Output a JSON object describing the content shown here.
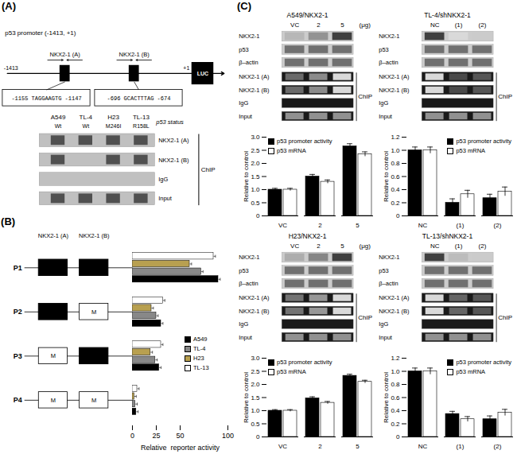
{
  "chart_data": [
    {
      "type": "diagram",
      "title": "(A)",
      "subtitle": "p53 promoter (-1413, +1)",
      "annotations": {
        "start": "-1413",
        "end": "+1",
        "sites": [
          "NKX2-1 (A)",
          "NKX2-1 (B)"
        ],
        "reporter": "LUC",
        "sequences": [
          "-1155 TAGGAAGTG -1147",
          "-696 GCACTTTAG -674"
        ],
        "cell_lines": [
          "A549",
          "TL-4",
          "H23",
          "TL-13"
        ],
        "p53_status": [
          "Wt",
          "Wt",
          "M246I",
          "R158L"
        ],
        "status_label": "p53 status",
        "chip_label": "ChIP"
      },
      "chip_rows": [
        {
          "name": "NKX2-1 (A)",
          "bands": [
            true,
            true,
            true,
            true
          ]
        },
        {
          "name": "NKX2-1 (B)",
          "bands": [
            true,
            false,
            true,
            true
          ]
        },
        {
          "name": "IgG",
          "bands": [
            false,
            false,
            false,
            false
          ]
        },
        {
          "name": "Input",
          "bands": [
            true,
            true,
            true,
            true
          ]
        }
      ]
    },
    {
      "type": "bar",
      "orientation": "horizontal",
      "title": "(B)",
      "categories": [
        "P1",
        "P2",
        "P3",
        "P4"
      ],
      "xlabel": "Relative  reporter activity",
      "xlim": [
        0,
        100
      ],
      "xticks": [
        0,
        25,
        50,
        100
      ],
      "series": [
        {
          "name": "A549",
          "color": "#000000",
          "values": [
            90,
            30,
            28,
            4
          ],
          "errors": [
            2.0,
            2.0,
            2.0,
            2.0
          ]
        },
        {
          "name": "TL-4",
          "color": "#888888",
          "values": [
            72,
            25,
            24,
            3
          ],
          "errors": [
            2.0,
            2.0,
            2.0,
            2.0
          ]
        },
        {
          "name": "H23",
          "color": "#b8a050",
          "values": [
            60,
            20,
            19,
            2
          ],
          "errors": [
            2.0,
            2.0,
            2.0,
            2.0
          ]
        },
        {
          "name": "TL-13",
          "color": "#ffffff",
          "values": [
            85,
            32,
            30,
            5
          ],
          "errors": [
            2.0,
            2.0,
            2.0,
            2.0
          ]
        }
      ],
      "legend": "right",
      "annotations": {
        "sites": [
          "NKX2-1 (A)",
          "NKX2-1 (B)"
        ],
        "mutant": "M",
        "intact": [
          [
            true,
            true
          ],
          [
            true,
            false
          ],
          [
            false,
            true
          ],
          [
            false,
            false
          ]
        ]
      }
    },
    {
      "type": "panel",
      "title": "(C)",
      "charts": [
        {
          "type": "bar",
          "title": "A549/NKX2-1",
          "categories": [
            "VC",
            "2",
            "5"
          ],
          "ylabel": "Relative to control",
          "ylim": [
            0,
            3
          ],
          "yticks": [
            0,
            0.5,
            {
              "value": 1.0,
              "label": "1.0"
            },
            1.5,
            {
              "value": 2.0,
              "label": "2.0"
            },
            2.5,
            {
              "value": 3.0,
              "label": "3.0"
            }
          ],
          "series": [
            {
              "name": "p53 promoter activity",
              "color": "#000000",
              "values": [
                1.0,
                1.5,
                2.65
              ],
              "errors": [
                0.05,
                0.08,
                0.1
              ]
            },
            {
              "name": "p53 mRNA",
              "color": "#ffffff",
              "values": [
                1.0,
                1.3,
                2.35
              ],
              "errors": [
                0.05,
                0.07,
                0.09
              ]
            }
          ],
          "legend": "upper left",
          "annotations": {
            "lane_unit": "(μg)",
            "blots": [
              "NKX2-1",
              "p53",
              "β–actin"
            ],
            "chip_rows": [
              "NKX2-1 (A)",
              "NKX2-1 (B)",
              "IgG",
              "Input"
            ],
            "chip_label": "ChIP"
          }
        },
        {
          "type": "bar",
          "title": "TL-4/shNKX2-1",
          "categories": [
            "NC",
            "(1)",
            "(2)"
          ],
          "ylabel": "Relative to control",
          "ylim": [
            0,
            1.2
          ],
          "yticks": [
            0,
            0.2,
            0.4,
            0.6,
            0.8,
            {
              "value": 1.0,
              "label": "1.0"
            },
            1.2
          ],
          "series": [
            {
              "name": "p53 promoter activity",
              "color": "#000000",
              "values": [
                1.0,
                0.2,
                0.27
              ],
              "errors": [
                0.05,
                0.06,
                0.06
              ]
            },
            {
              "name": "p53 mRNA",
              "color": "#ffffff",
              "values": [
                1.0,
                0.33,
                0.37
              ],
              "errors": [
                0.05,
                0.06,
                0.07
              ]
            }
          ],
          "legend": "upper right",
          "annotations": {
            "blots": [
              "NKX2-1",
              "p53",
              "β–actin"
            ],
            "chip_rows": [
              "NKX2-1 (A)",
              "NKX2-1 (B)",
              "IgG",
              "Input"
            ],
            "chip_label": "ChIP"
          }
        },
        {
          "type": "bar",
          "title": "H23/NKX2-1",
          "categories": [
            "VC",
            "2",
            "5"
          ],
          "ylabel": "Relative to control",
          "ylim": [
            0,
            3
          ],
          "yticks": [
            0,
            0.5,
            {
              "value": 1.0,
              "label": "1.0"
            },
            1.5,
            {
              "value": 2.0,
              "label": "2.0"
            },
            2.5,
            {
              "value": 3.0,
              "label": "3.0"
            }
          ],
          "series": [
            {
              "name": "p53 promoter activity",
              "color": "#000000",
              "values": [
                1.0,
                1.47,
                2.33
              ],
              "errors": [
                0.04,
                0.06,
                0.06
              ]
            },
            {
              "name": "p53 mRNA",
              "color": "#ffffff",
              "values": [
                1.0,
                1.3,
                2.1
              ],
              "errors": [
                0.04,
                0.05,
                0.06
              ]
            }
          ],
          "legend": "upper left",
          "annotations": {
            "lane_unit": "(μg)",
            "blots": [
              "NKX2-1",
              "p53",
              "β–actin"
            ],
            "chip_rows": [
              "NKX2-1 (A)",
              "NKX2-1 (B)",
              "IgG",
              "Input"
            ],
            "chip_label": "ChIP"
          }
        },
        {
          "type": "bar",
          "title": "TL-13/shNKX2-1",
          "categories": [
            "NC",
            "(1)",
            "(2)"
          ],
          "ylabel": "Relative to control",
          "ylim": [
            0,
            1.2
          ],
          "yticks": [
            0,
            0.2,
            0.4,
            0.6,
            0.8,
            {
              "value": 1.0,
              "label": "1.0"
            },
            1.2
          ],
          "series": [
            {
              "name": "p53 promoter activity",
              "color": "#000000",
              "values": [
                1.0,
                0.35,
                0.27
              ],
              "errors": [
                0.05,
                0.04,
                0.05
              ]
            },
            {
              "name": "p53 mRNA",
              "color": "#ffffff",
              "values": [
                1.0,
                0.27,
                0.37
              ],
              "errors": [
                0.05,
                0.04,
                0.05
              ]
            }
          ],
          "legend": "upper right",
          "annotations": {
            "blots": [
              "NKX2-1",
              "p53",
              "β–actin"
            ],
            "chip_rows": [
              "NKX2-1 (A)",
              "NKX2-1 (B)",
              "IgG",
              "Input"
            ],
            "chip_label": "ChIP"
          }
        }
      ]
    }
  ]
}
